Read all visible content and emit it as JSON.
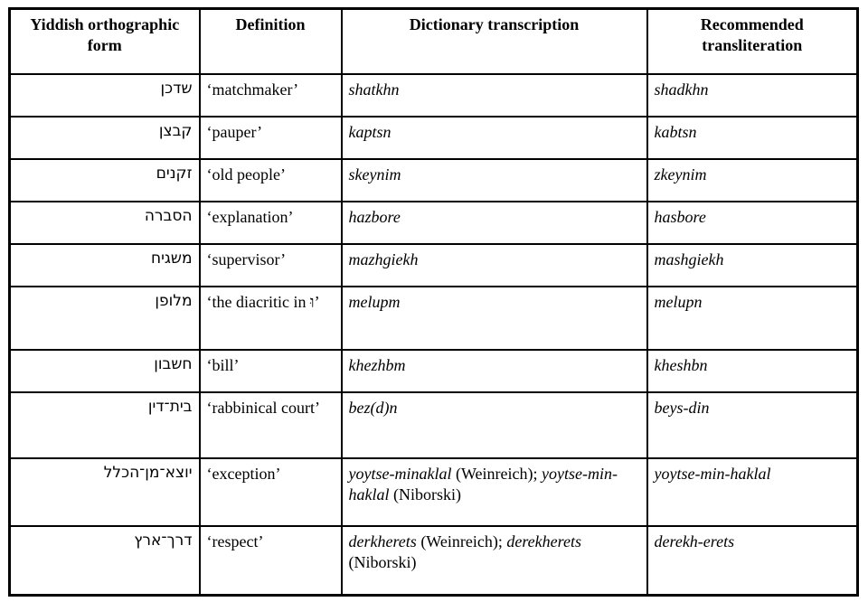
{
  "table": {
    "headers": [
      "Yiddish orthographic form",
      "Definition",
      "Dictionary transcription",
      "Recommended transliteration"
    ],
    "rows": [
      {
        "yiddish": "שדכן",
        "definition": "‘matchmaker’",
        "transcription": [
          {
            "text": "shatkhn",
            "italic": true
          }
        ],
        "transliteration": "shadkhn"
      },
      {
        "yiddish": "קבצן",
        "definition": "‘pauper’",
        "transcription": [
          {
            "text": "kaptsn",
            "italic": true
          }
        ],
        "transliteration": "kabtsn"
      },
      {
        "yiddish": "זקנים",
        "definition": "‘old people’",
        "transcription": [
          {
            "text": "skeynim",
            "italic": true
          }
        ],
        "transliteration": "zkeynim"
      },
      {
        "yiddish": "הסברה",
        "definition": "‘explanation’",
        "transcription": [
          {
            "text": "hazbore",
            "italic": true
          }
        ],
        "transliteration": "hasbore"
      },
      {
        "yiddish": "משגיח",
        "definition": "‘supervisor’",
        "transcription": [
          {
            "text": "mazhgiekh",
            "italic": true
          }
        ],
        "transliteration": "mashgiekh"
      },
      {
        "yiddish": "מלופן",
        "definition": "‘the diacritic in וּ’",
        "transcription": [
          {
            "text": "melupm",
            "italic": true
          }
        ],
        "transliteration": "melupn"
      },
      {
        "yiddish": "חשבון",
        "definition": "‘bill’",
        "transcription": [
          {
            "text": "khezhbm",
            "italic": true
          }
        ],
        "transliteration": "kheshbn"
      },
      {
        "yiddish": "בית־דין",
        "definition": "‘rabbinical court’",
        "transcription": [
          {
            "text": "bez(d)n",
            "italic": true
          }
        ],
        "transliteration": "beys-din"
      },
      {
        "yiddish": "יוצא־מן־הכלל",
        "definition": "‘exception’",
        "transcription": [
          {
            "text": "yoytse-minaklal",
            "italic": true
          },
          {
            "text": " (Weinreich); ",
            "italic": false
          },
          {
            "text": "yoytse-min-haklal",
            "italic": true
          },
          {
            "text": " (Niborski)",
            "italic": false
          }
        ],
        "transliteration": "yoytse-min-haklal"
      },
      {
        "yiddish": "דרך־ארץ",
        "definition": "‘respect’",
        "transcription": [
          {
            "text": "derkherets",
            "italic": true
          },
          {
            "text": " (Weinreich); ",
            "italic": false
          },
          {
            "text": "derekherets",
            "italic": true
          },
          {
            "text": " (Niborski)",
            "italic": false
          }
        ],
        "transliteration": "derekh-erets"
      }
    ]
  }
}
